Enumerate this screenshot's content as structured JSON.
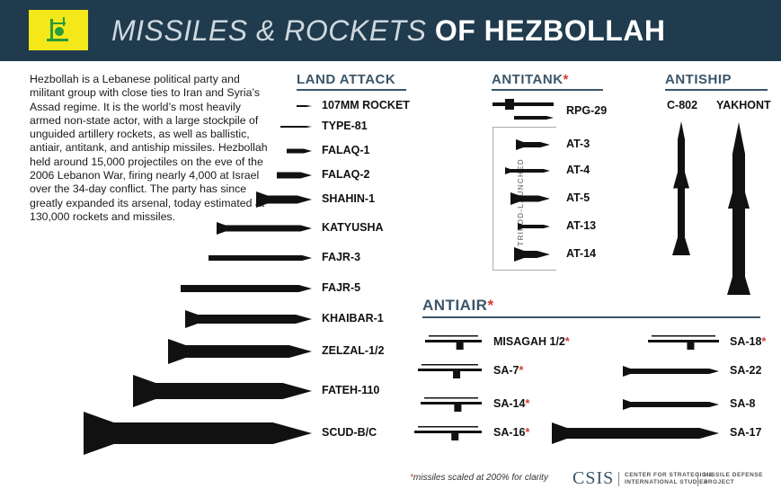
{
  "header": {
    "title_part1": "MISSILES & ROCKETS",
    "title_part2": "OF HEZBOLLAH"
  },
  "intro": "Hezbollah is a Lebanese political party and militant group with close ties to Iran and Syria’s Assad regime. It is the world’s most heavily armed non-state actor, with a large stockpile of unguided artillery rockets, as well as ballistic, antiair, antitank, and antiship missiles. Hezbollah held around 15,000 projectiles on the eve of the 2006 Lebanon War, firing nearly 4,000 at Israel over the 34-day conflict. The party has since greatly expanded its arsenal, today estimated at 130,000 rockets and missiles.",
  "sections": {
    "land_attack": "LAND ATTACK",
    "antitank": "ANTITANK",
    "antiship": "ANTISHIP",
    "antiair": "ANTIAIR",
    "star": "*"
  },
  "land_attack": [
    "107MM ROCKET",
    "TYPE-81",
    "FALAQ-1",
    "FALAQ-2",
    "SHAHIN-1",
    "KATYUSHA",
    "FAJR-3",
    "FAJR-5",
    "KHAIBAR-1",
    "ZELZAL-1/2",
    "FATEH-110",
    "SCUD-B/C"
  ],
  "antitank": {
    "top": "RPG-29",
    "tripod_label": "TRIPOD-LAUNCHED",
    "tripod": [
      "AT-3",
      "AT-4",
      "AT-5",
      "AT-13",
      "AT-14"
    ]
  },
  "antiship": [
    "C-802",
    "YAKHONT"
  ],
  "antiair": {
    "left": [
      {
        "label": "MISAGAH 1/2",
        "star": "*"
      },
      {
        "label": "SA-7",
        "star": "*"
      },
      {
        "label": "SA-14",
        "star": "*"
      },
      {
        "label": "SA-16",
        "star": "*"
      }
    ],
    "right": [
      {
        "label": "SA-18",
        "star": "*"
      },
      {
        "label": "SA-22",
        "star": ""
      },
      {
        "label": "SA-8",
        "star": ""
      },
      {
        "label": "SA-17",
        "star": ""
      }
    ]
  },
  "footnote": {
    "star": "*",
    "text": "missiles scaled at 200% for clarity"
  },
  "footer": {
    "logo": "CSIS",
    "org_line1": "CENTER FOR STRATEGIC &",
    "org_line2": "INTERNATIONAL STUDIES",
    "proj_line1": "MISSILE DEFENSE",
    "proj_line2": "PROJECT"
  },
  "colors": {
    "header": "#1f3b4d",
    "flag": "#f4e81a",
    "accent": "#d63a2e",
    "section": "#3b5568"
  }
}
